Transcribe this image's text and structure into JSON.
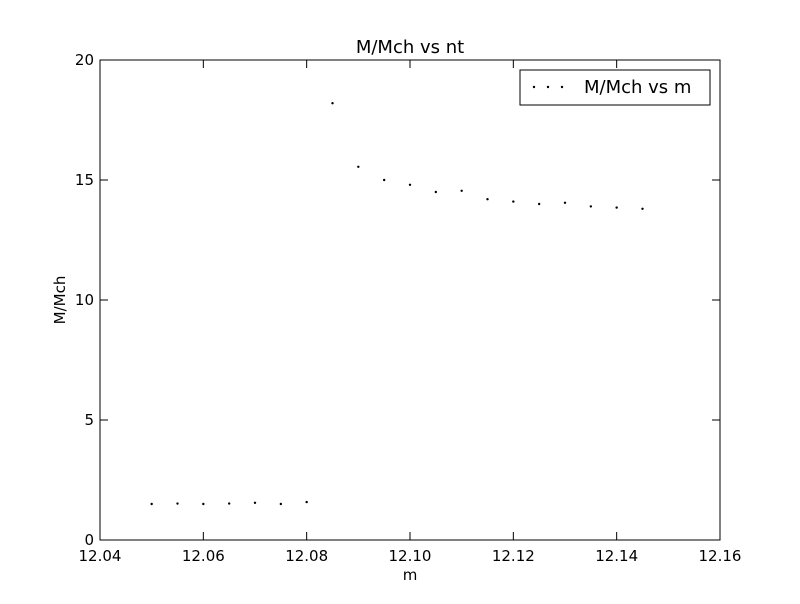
{
  "chart_data": {
    "type": "scatter",
    "title": "M/Mch vs nt",
    "xlabel": "m",
    "ylabel": "M/Mch",
    "xlim": [
      12.04,
      12.16
    ],
    "ylim": [
      0,
      20
    ],
    "xticks": [
      "12.04",
      "12.06",
      "12.08",
      "12.10",
      "12.12",
      "12.14",
      "12.16"
    ],
    "yticks": [
      "0",
      "5",
      "10",
      "15",
      "20"
    ],
    "grid": false,
    "legend_position": "top-right",
    "series": [
      {
        "name": "M/Mch vs m",
        "color": "#000000",
        "marker": "point",
        "x": [
          12.05,
          12.055,
          12.06,
          12.065,
          12.07,
          12.075,
          12.08,
          12.085,
          12.09,
          12.095,
          12.1,
          12.105,
          12.11,
          12.115,
          12.12,
          12.125,
          12.13,
          12.135,
          12.14,
          12.145
        ],
        "y": [
          1.5,
          1.52,
          1.5,
          1.52,
          1.55,
          1.5,
          1.58,
          18.2,
          15.55,
          15.0,
          14.8,
          14.5,
          14.55,
          14.2,
          14.1,
          14.0,
          14.05,
          13.9,
          13.85,
          13.8
        ]
      }
    ]
  }
}
